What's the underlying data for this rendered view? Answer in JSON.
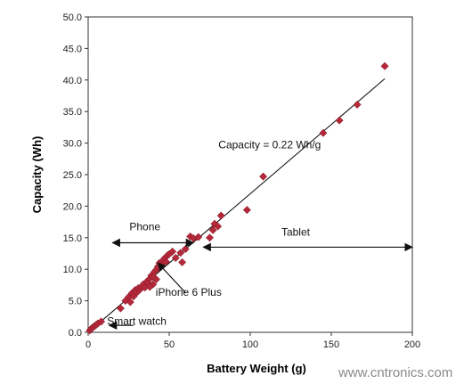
{
  "chart_data": {
    "type": "scatter",
    "xlabel": "Battery Weight (g)",
    "ylabel": "Capacity (Wh)",
    "xlim": [
      0,
      200
    ],
    "ylim": [
      0,
      50
    ],
    "x_ticks": [
      "0",
      "50",
      "100",
      "150",
      "200"
    ],
    "y_ticks": [
      "0.0",
      "5.0",
      "10.0",
      "15.0",
      "20.0",
      "25.0",
      "30.0",
      "35.0",
      "40.0",
      "45.0",
      "50.0"
    ],
    "grid": false,
    "marker": "diamond",
    "marker_color": "#b5283a",
    "points": [
      [
        1,
        0.3
      ],
      [
        2,
        0.6
      ],
      [
        3,
        0.8
      ],
      [
        4,
        1.0
      ],
      [
        5,
        1.2
      ],
      [
        6,
        1.4
      ],
      [
        8,
        1.7
      ],
      [
        20,
        3.8
      ],
      [
        23,
        5.0
      ],
      [
        25,
        5.6
      ],
      [
        26,
        4.8
      ],
      [
        27,
        6.2
      ],
      [
        28,
        5.7
      ],
      [
        29,
        6.7
      ],
      [
        30,
        6.3
      ],
      [
        31,
        7.0
      ],
      [
        32,
        6.8
      ],
      [
        33,
        7.2
      ],
      [
        34,
        7.6
      ],
      [
        35,
        7.1
      ],
      [
        36,
        8.0
      ],
      [
        37,
        7.8
      ],
      [
        38,
        8.5
      ],
      [
        39,
        9.0
      ],
      [
        40,
        8.8
      ],
      [
        41,
        9.6
      ],
      [
        42,
        9.9
      ],
      [
        43,
        10.4
      ],
      [
        44,
        11.0
      ],
      [
        45,
        10.8
      ],
      [
        46,
        11.3
      ],
      [
        47,
        11.7
      ],
      [
        48,
        11.2
      ],
      [
        49,
        12.2
      ],
      [
        50,
        12.4
      ],
      [
        52,
        12.8
      ],
      [
        40,
        7.6
      ],
      [
        38,
        7.2
      ],
      [
        42,
        8.4
      ],
      [
        54,
        11.8
      ],
      [
        57,
        12.6
      ],
      [
        58,
        11.1
      ],
      [
        60,
        13.2
      ],
      [
        63,
        15.2
      ],
      [
        65,
        14.9
      ],
      [
        68,
        15.1
      ],
      [
        75,
        15.0
      ],
      [
        77,
        16.2
      ],
      [
        78,
        17.2
      ],
      [
        80,
        16.8
      ],
      [
        82,
        18.5
      ],
      [
        98,
        19.4
      ],
      [
        108,
        24.7
      ],
      [
        145,
        31.6
      ],
      [
        155,
        33.6
      ],
      [
        166,
        36.1
      ],
      [
        183,
        42.2
      ]
    ],
    "trendline": {
      "x": [
        0,
        183
      ],
      "y": [
        0.0,
        40.2
      ]
    },
    "annotations": [
      {
        "text": "Capacity = 0.22 Wh/g",
        "x": 112,
        "y": 29.2
      },
      {
        "text": "Phone",
        "x": 35,
        "y": 16.2
      },
      {
        "text": "Tablet",
        "x": 128,
        "y": 15.3
      },
      {
        "text": "iPhone 6 Plus",
        "x": 62,
        "y": 5.8
      },
      {
        "text": "Smart watch",
        "x": 30,
        "y": 1.2
      }
    ],
    "arrows": [
      {
        "label": "Phone",
        "from": [
          15,
          14.2
        ],
        "to": [
          65,
          14.2
        ],
        "double": true
      },
      {
        "label": "Tablet",
        "from": [
          71,
          13.5
        ],
        "to": [
          200,
          13.5
        ],
        "double": true
      },
      {
        "label": "iPhone 6 Plus",
        "from": [
          60,
          6.3
        ],
        "to": [
          43,
          11.0
        ],
        "double": false
      },
      {
        "label": "Smart watch",
        "from": [
          28,
          1.1
        ],
        "to": [
          13,
          1.1
        ],
        "double": false
      }
    ]
  },
  "watermark": "www.cntronics.com"
}
